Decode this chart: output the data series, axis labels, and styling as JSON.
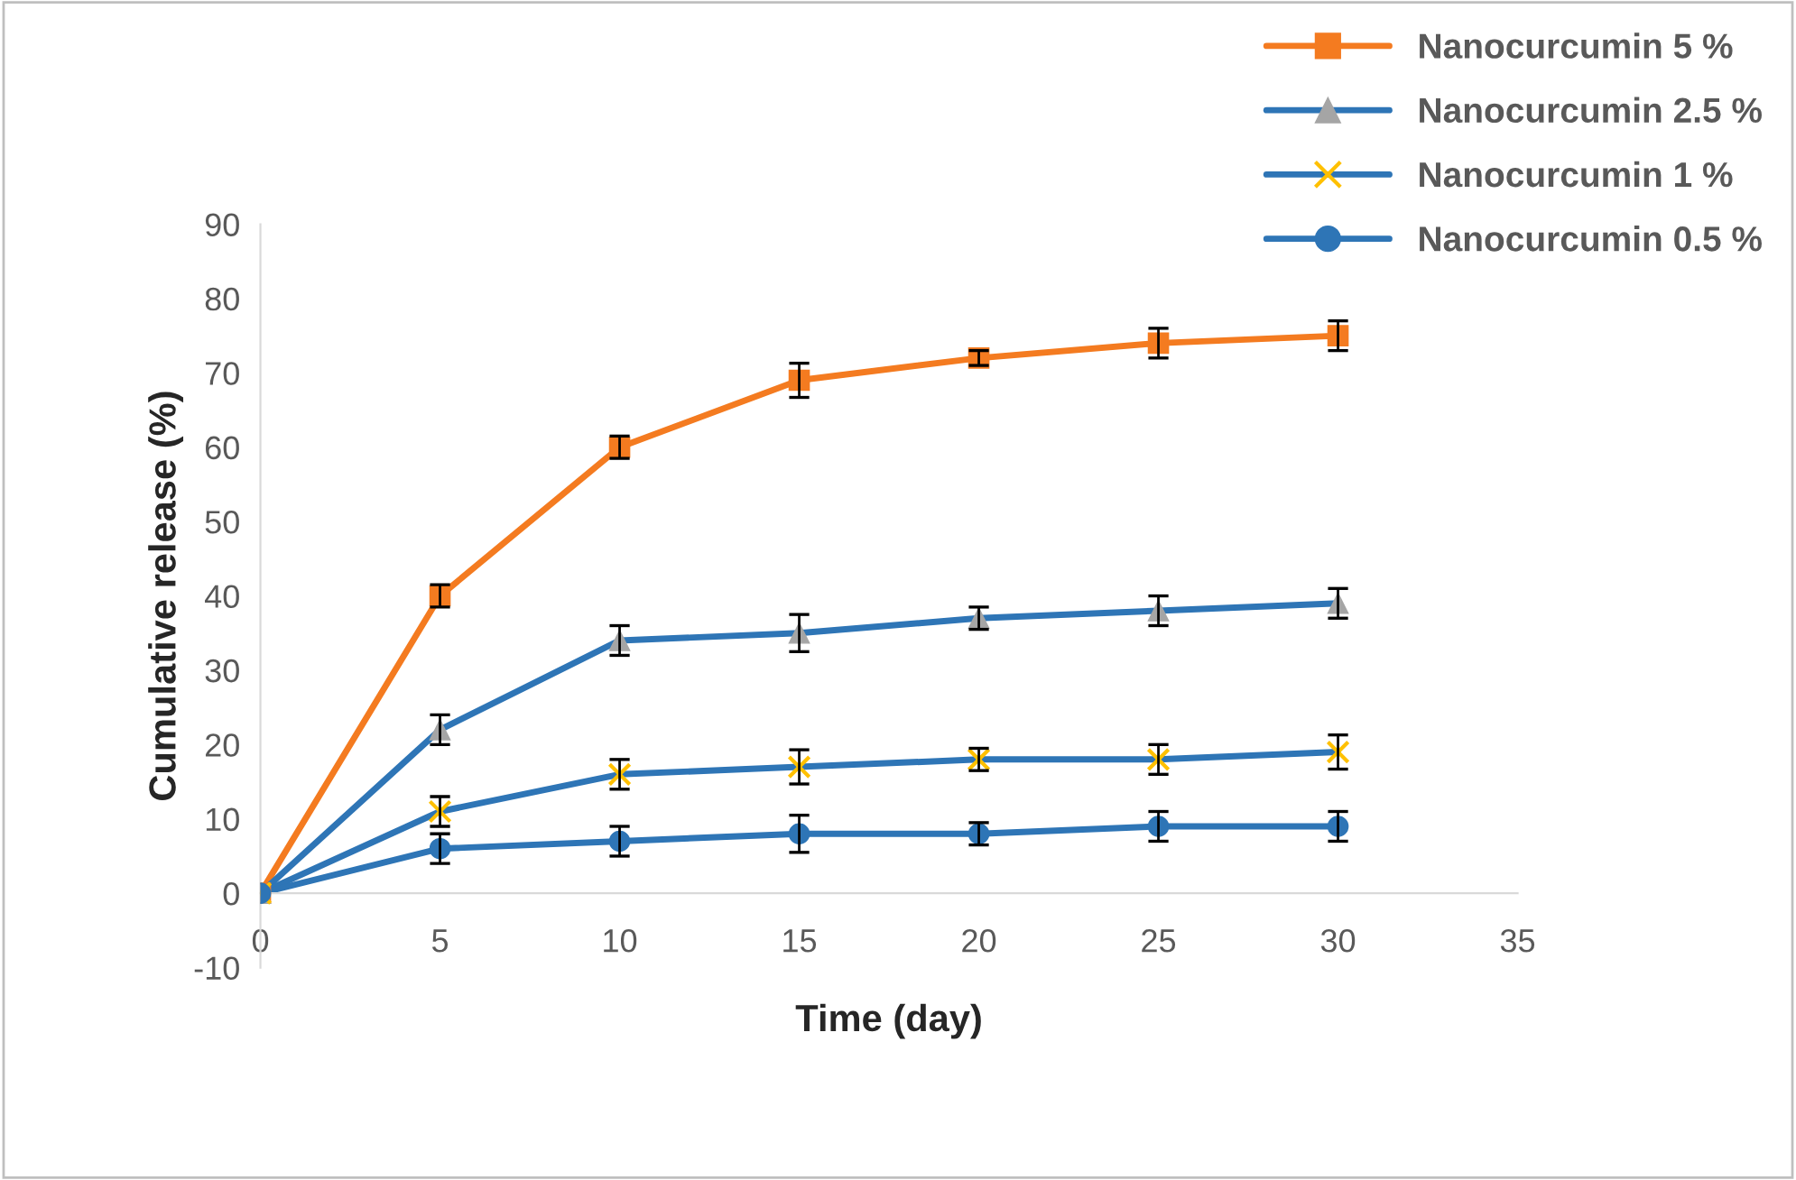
{
  "chart_data": {
    "type": "line",
    "xlabel": "Time (day)",
    "ylabel": "Cumulative release (%)",
    "x": [
      0,
      5,
      10,
      15,
      20,
      25,
      30
    ],
    "xlim": [
      0,
      35
    ],
    "xticks": [
      0,
      5,
      10,
      15,
      20,
      25,
      30,
      35
    ],
    "ylim": [
      -10,
      90
    ],
    "yticks": [
      -10,
      0,
      10,
      20,
      30,
      40,
      50,
      60,
      70,
      80,
      90
    ],
    "grid": false,
    "legend": "top right",
    "line_style": "solid",
    "series": [
      {
        "name": "Nanocurcumin 5 %",
        "color": "#f47b20",
        "marker": "square",
        "values": [
          0,
          40,
          60,
          69,
          72,
          74,
          75
        ],
        "errors": [
          null,
          1.5,
          1.5,
          2.3,
          1,
          2,
          2
        ]
      },
      {
        "name": "Nanocurcumin 2.5 %",
        "color": "#a5a5a5",
        "marker": "triangle",
        "values": [
          0,
          22,
          34,
          35,
          37,
          38,
          39
        ],
        "errors": [
          null,
          2,
          2,
          2.5,
          1.5,
          2,
          2
        ]
      },
      {
        "name": "Nanocurcumin 1 %",
        "color": "#ffc000",
        "marker": "cross",
        "values": [
          0,
          11,
          16,
          17,
          18,
          18,
          19
        ],
        "errors": [
          null,
          2,
          2,
          2.3,
          1.5,
          2,
          2.3
        ]
      },
      {
        "name": "Nanocurcumin 0.5 %",
        "color": "#2e75b6",
        "marker": "circle",
        "values": [
          0,
          6,
          7,
          8,
          8,
          9,
          9
        ],
        "errors": [
          null,
          2,
          2,
          2.5,
          1.5,
          2,
          2
        ]
      }
    ]
  }
}
